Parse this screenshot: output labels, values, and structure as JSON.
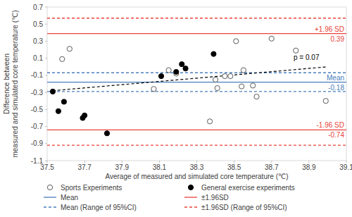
{
  "chart_data": {
    "type": "scatter",
    "x_label": "Average of measured and simulated core temperature (℃)",
    "y_label": [
      "Difference between",
      "measured and simulated core temperature (℃)"
    ],
    "xlim": [
      37.5,
      39.1
    ],
    "ylim": [
      -1.1,
      0.7
    ],
    "xticks": [
      37.5,
      37.7,
      37.9,
      38.1,
      38.3,
      38.5,
      38.7,
      38.9,
      39.1
    ],
    "yticks": [
      -1.1,
      -0.9,
      -0.7,
      -0.5,
      -0.3,
      -0.1,
      0.1,
      0.3,
      0.5,
      0.7
    ],
    "grid": false,
    "legend": "bottom",
    "series": [
      {
        "name": "Sports Experiments",
        "type": "scatter",
        "marker": "open-circle",
        "color": "#595959",
        "x": [
          37.58,
          37.62,
          38.07,
          38.15,
          38.19,
          38.37,
          38.4,
          38.41,
          38.45,
          38.48,
          38.51,
          38.54,
          38.55,
          38.6,
          38.62,
          38.7,
          38.83,
          38.99
        ],
        "values": [
          0.09,
          0.21,
          -0.26,
          -0.04,
          -0.08,
          -0.64,
          -0.15,
          -0.25,
          -0.11,
          -0.11,
          0.3,
          -0.23,
          -0.04,
          -0.22,
          -0.35,
          0.33,
          0.19,
          -0.4
        ]
      },
      {
        "name": "General exercise experiments",
        "type": "scatter",
        "marker": "filled-circle",
        "color": "#000000",
        "x": [
          37.53,
          37.56,
          37.59,
          37.69,
          37.7,
          37.82,
          38.11,
          38.19,
          38.22,
          38.24,
          38.39
        ],
        "values": [
          -0.29,
          -0.52,
          -0.41,
          -0.6,
          -0.57,
          -0.78,
          -0.11,
          -0.06,
          0.03,
          -0.02,
          0.15
        ]
      },
      {
        "name": "Mean",
        "type": "hline",
        "color": "#4a7ebb",
        "line_style": "solid",
        "data_labels": true,
        "values": [
          -0.18
        ],
        "line_labels": [
          "Mean"
        ]
      },
      {
        "name": "±1.96SD",
        "type": "hline",
        "color": "#e8443a",
        "line_style": "solid",
        "data_labels": true,
        "values": [
          0.39,
          -0.74
        ],
        "line_labels": [
          "+1.96 SD",
          "-1.96 SD"
        ]
      },
      {
        "name": "Mean (Range of 95%CI)",
        "type": "hline",
        "color": "#4a7ebb",
        "line_style": "dashed",
        "values": [
          -0.07,
          -0.29
        ]
      },
      {
        "name": "±1.96SD (Range of 95%CI)",
        "type": "hline",
        "color": "#e8443a",
        "line_style": "dashed",
        "values": [
          0.57,
          -0.92
        ]
      },
      {
        "type": "line",
        "color": "#000000",
        "line_style": "dashed",
        "x": [
          37.53,
          39.0
        ],
        "values": [
          -0.28,
          0.0
        ],
        "annotation": "p = 0.07"
      }
    ]
  }
}
